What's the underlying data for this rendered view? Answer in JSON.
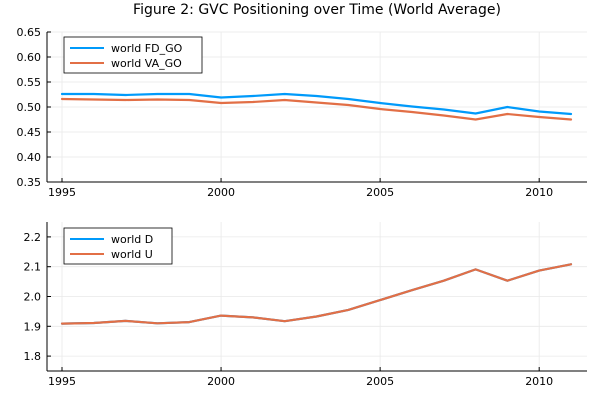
{
  "title": "Figure 2: GVC Positioning over Time (World Average)",
  "chart_data": [
    {
      "type": "line",
      "xlim": [
        1995,
        2011
      ],
      "ylim": [
        0.35,
        0.65
      ],
      "x_ticks": [
        1995,
        2000,
        2005,
        2010
      ],
      "y_ticks": [
        0.35,
        0.4,
        0.45,
        0.5,
        0.55,
        0.6,
        0.65
      ],
      "y_decimals": 2,
      "grid": true,
      "legend_position": "top-left",
      "x": [
        1995,
        1996,
        1997,
        1998,
        1999,
        2000,
        2001,
        2002,
        2003,
        2004,
        2005,
        2006,
        2007,
        2008,
        2009,
        2010,
        2011
      ],
      "series": [
        {
          "name": "world FD_GO",
          "color": "#009AFA",
          "values": [
            0.526,
            0.526,
            0.524,
            0.526,
            0.526,
            0.519,
            0.522,
            0.526,
            0.522,
            0.516,
            0.508,
            0.501,
            0.495,
            0.487,
            0.5,
            0.491,
            0.486
          ]
        },
        {
          "name": "world VA_GO",
          "color": "#E26F46",
          "values": [
            0.516,
            0.515,
            0.514,
            0.515,
            0.514,
            0.508,
            0.51,
            0.514,
            0.509,
            0.504,
            0.496,
            0.49,
            0.483,
            0.475,
            0.486,
            0.48,
            0.475
          ]
        }
      ]
    },
    {
      "type": "line",
      "xlim": [
        1995,
        2011
      ],
      "ylim": [
        1.75,
        2.25
      ],
      "x_ticks": [
        1995,
        2000,
        2005,
        2010
      ],
      "y_ticks": [
        1.8,
        1.9,
        2.0,
        2.1,
        2.2
      ],
      "y_decimals": 1,
      "grid": true,
      "legend_position": "top-left",
      "x": [
        1995,
        1996,
        1997,
        1998,
        1999,
        2000,
        2001,
        2002,
        2003,
        2004,
        2005,
        2006,
        2007,
        2008,
        2009,
        2010,
        2011
      ],
      "series": [
        {
          "name": "world D",
          "color": "#009AFA",
          "values": [
            1.909,
            1.911,
            1.918,
            1.91,
            1.914,
            1.936,
            1.93,
            1.917,
            1.933,
            1.955,
            1.988,
            2.021,
            2.053,
            2.091,
            2.053,
            2.087,
            2.108
          ]
        },
        {
          "name": "world U",
          "color": "#E26F46",
          "values": [
            1.909,
            1.911,
            1.918,
            1.91,
            1.914,
            1.936,
            1.93,
            1.917,
            1.933,
            1.955,
            1.988,
            2.021,
            2.053,
            2.091,
            2.053,
            2.087,
            2.108
          ]
        }
      ]
    }
  ]
}
